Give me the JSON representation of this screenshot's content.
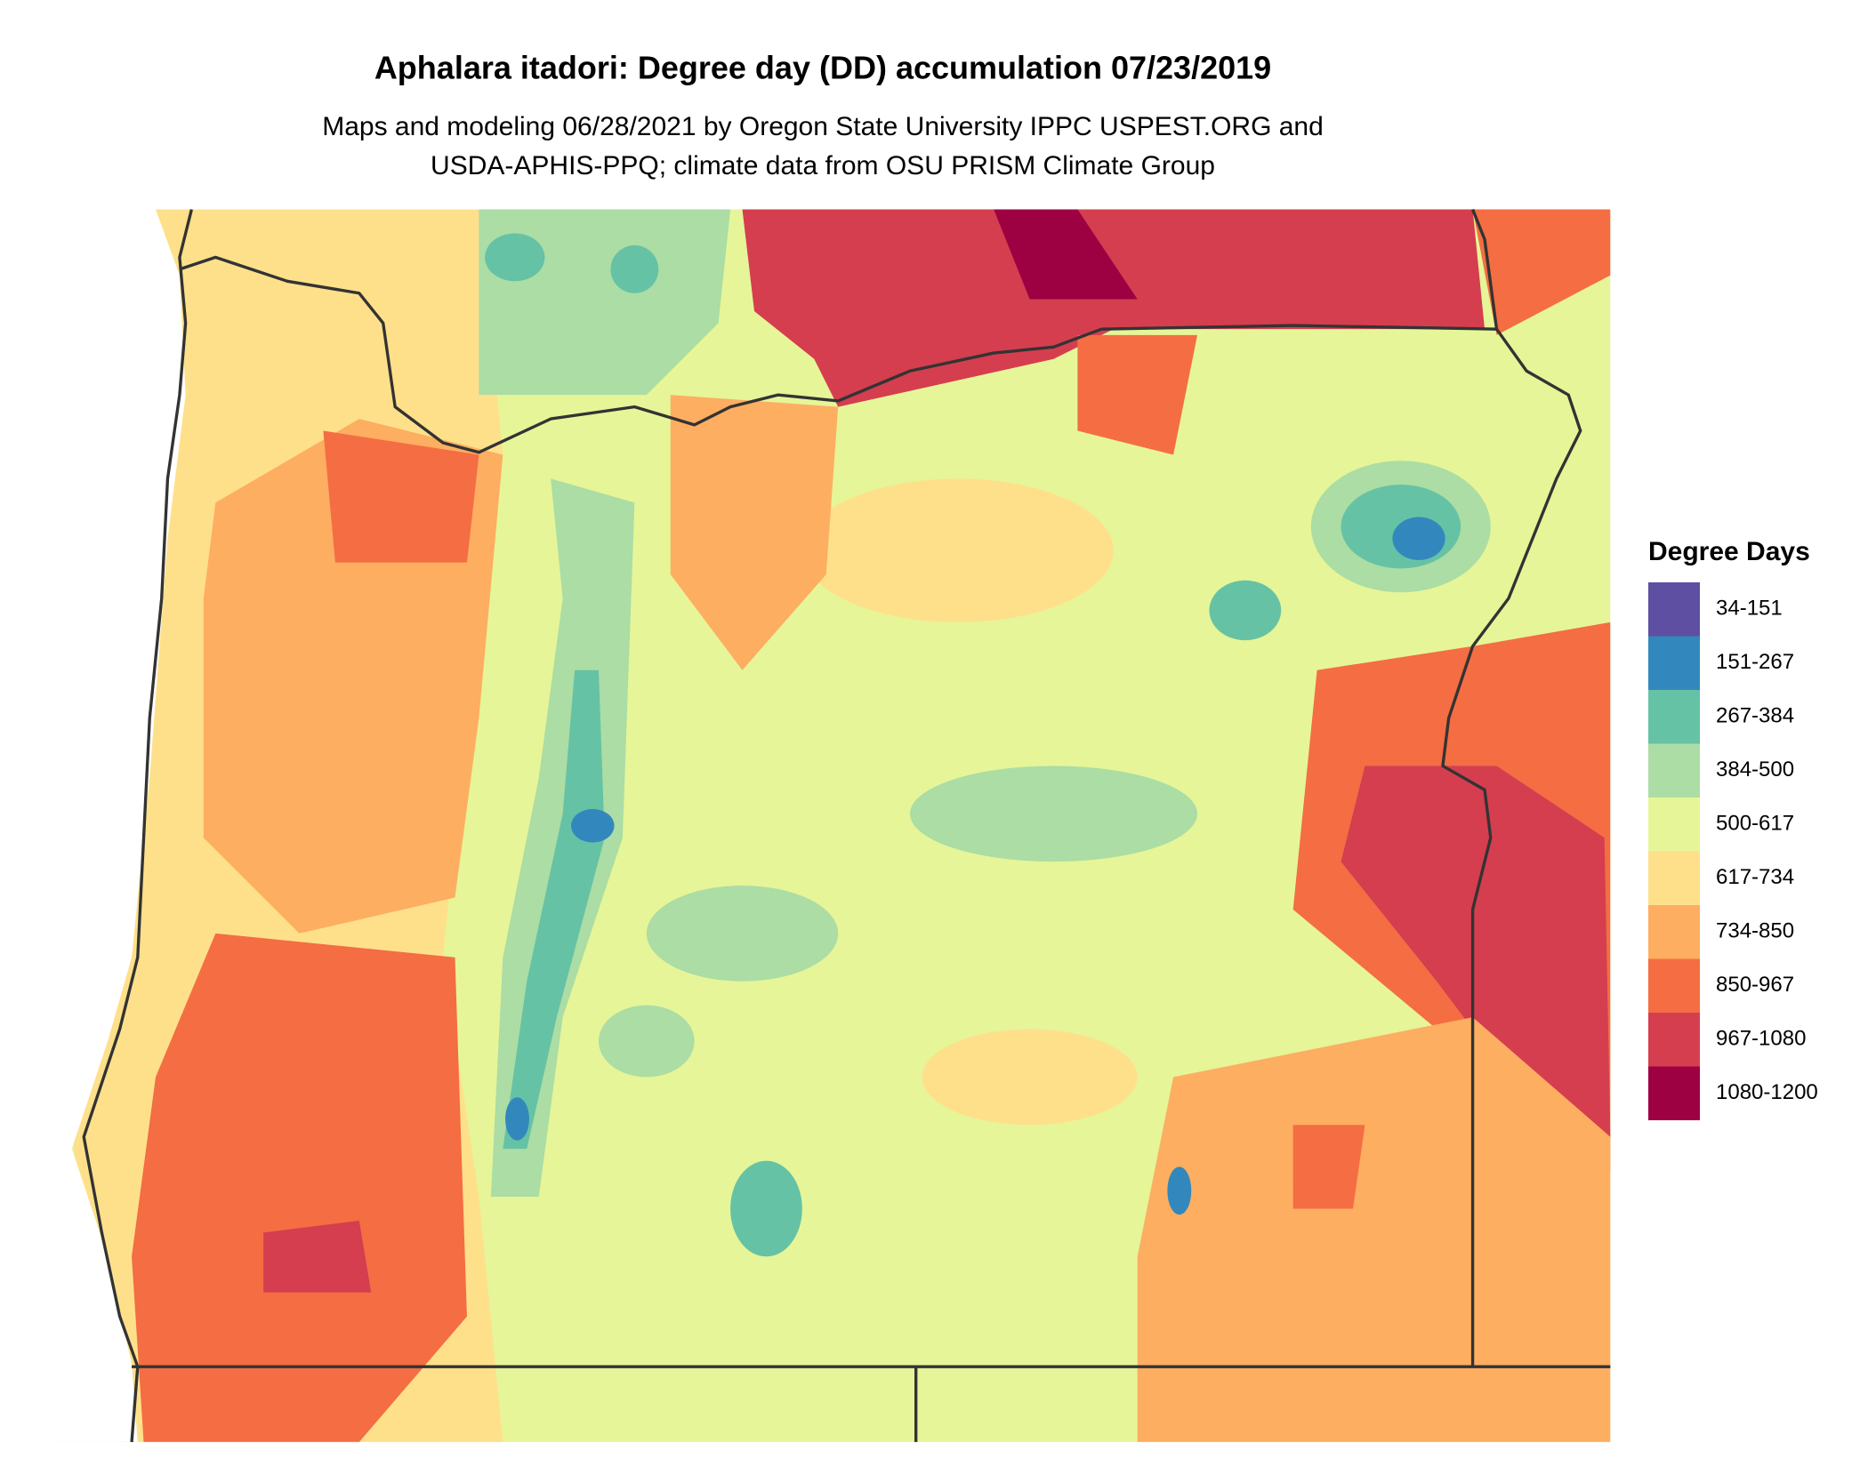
{
  "title": "Aphalara itadori: Degree day (DD) accumulation 07/23/2019",
  "subtitle": [
    "Maps and modeling 06/28/2021 by Oregon State University IPPC USPEST.ORG and",
    "USDA-APHIS-PPQ; climate data from OSU PRISM Climate Group"
  ],
  "legend": {
    "title": "Degree Days",
    "items": [
      {
        "label": "34-151",
        "color": "#5e4fa2"
      },
      {
        "label": "151-267",
        "color": "#3288bd"
      },
      {
        "label": "267-384",
        "color": "#66c2a5"
      },
      {
        "label": "384-500",
        "color": "#abdda4"
      },
      {
        "label": "500-617",
        "color": "#e6f598"
      },
      {
        "label": "617-734",
        "color": "#fee08b"
      },
      {
        "label": "734-850",
        "color": "#fdae61"
      },
      {
        "label": "850-967",
        "color": "#f46d43"
      },
      {
        "label": "967-1080",
        "color": "#d53e4f"
      },
      {
        "label": "1080-1200",
        "color": "#9e0142"
      }
    ]
  }
}
